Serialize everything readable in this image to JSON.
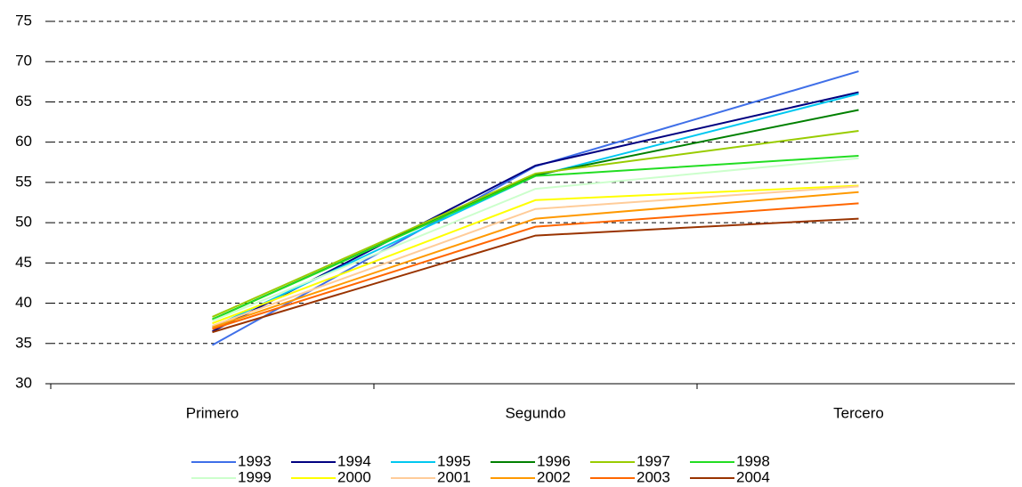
{
  "chart_data": {
    "type": "line",
    "categories": [
      "Primero",
      "Segundo",
      "Tercero"
    ],
    "series": [
      {
        "name": "1993",
        "color": "#3f6fe8",
        "values": [
          34.8,
          57.0,
          68.8
        ]
      },
      {
        "name": "1994",
        "color": "#000080",
        "values": [
          36.5,
          57.1,
          66.2
        ]
      },
      {
        "name": "1995",
        "color": "#00c8f0",
        "values": [
          37.0,
          55.8,
          66.0
        ]
      },
      {
        "name": "1996",
        "color": "#008000",
        "values": [
          38.0,
          55.9,
          64.0
        ]
      },
      {
        "name": "1997",
        "color": "#99cc00",
        "values": [
          38.3,
          56.1,
          61.4
        ]
      },
      {
        "name": "1998",
        "color": "#22dd22",
        "values": [
          38.0,
          55.8,
          58.3
        ]
      },
      {
        "name": "1999",
        "color": "#ccffcc",
        "values": [
          37.8,
          54.2,
          58.0
        ]
      },
      {
        "name": "2000",
        "color": "#ffff00",
        "values": [
          37.5,
          52.8,
          54.6
        ]
      },
      {
        "name": "2001",
        "color": "#ffcc99",
        "values": [
          37.2,
          51.7,
          54.5
        ]
      },
      {
        "name": "2002",
        "color": "#ff9900",
        "values": [
          37.0,
          50.5,
          53.8
        ]
      },
      {
        "name": "2003",
        "color": "#ff6600",
        "values": [
          36.8,
          49.5,
          52.4
        ]
      },
      {
        "name": "2004",
        "color": "#993300",
        "values": [
          36.4,
          48.4,
          50.5
        ]
      }
    ],
    "ylim": [
      30,
      75
    ],
    "yticks": [
      30,
      35,
      40,
      45,
      50,
      55,
      60,
      65,
      70,
      75
    ],
    "grid": true
  }
}
